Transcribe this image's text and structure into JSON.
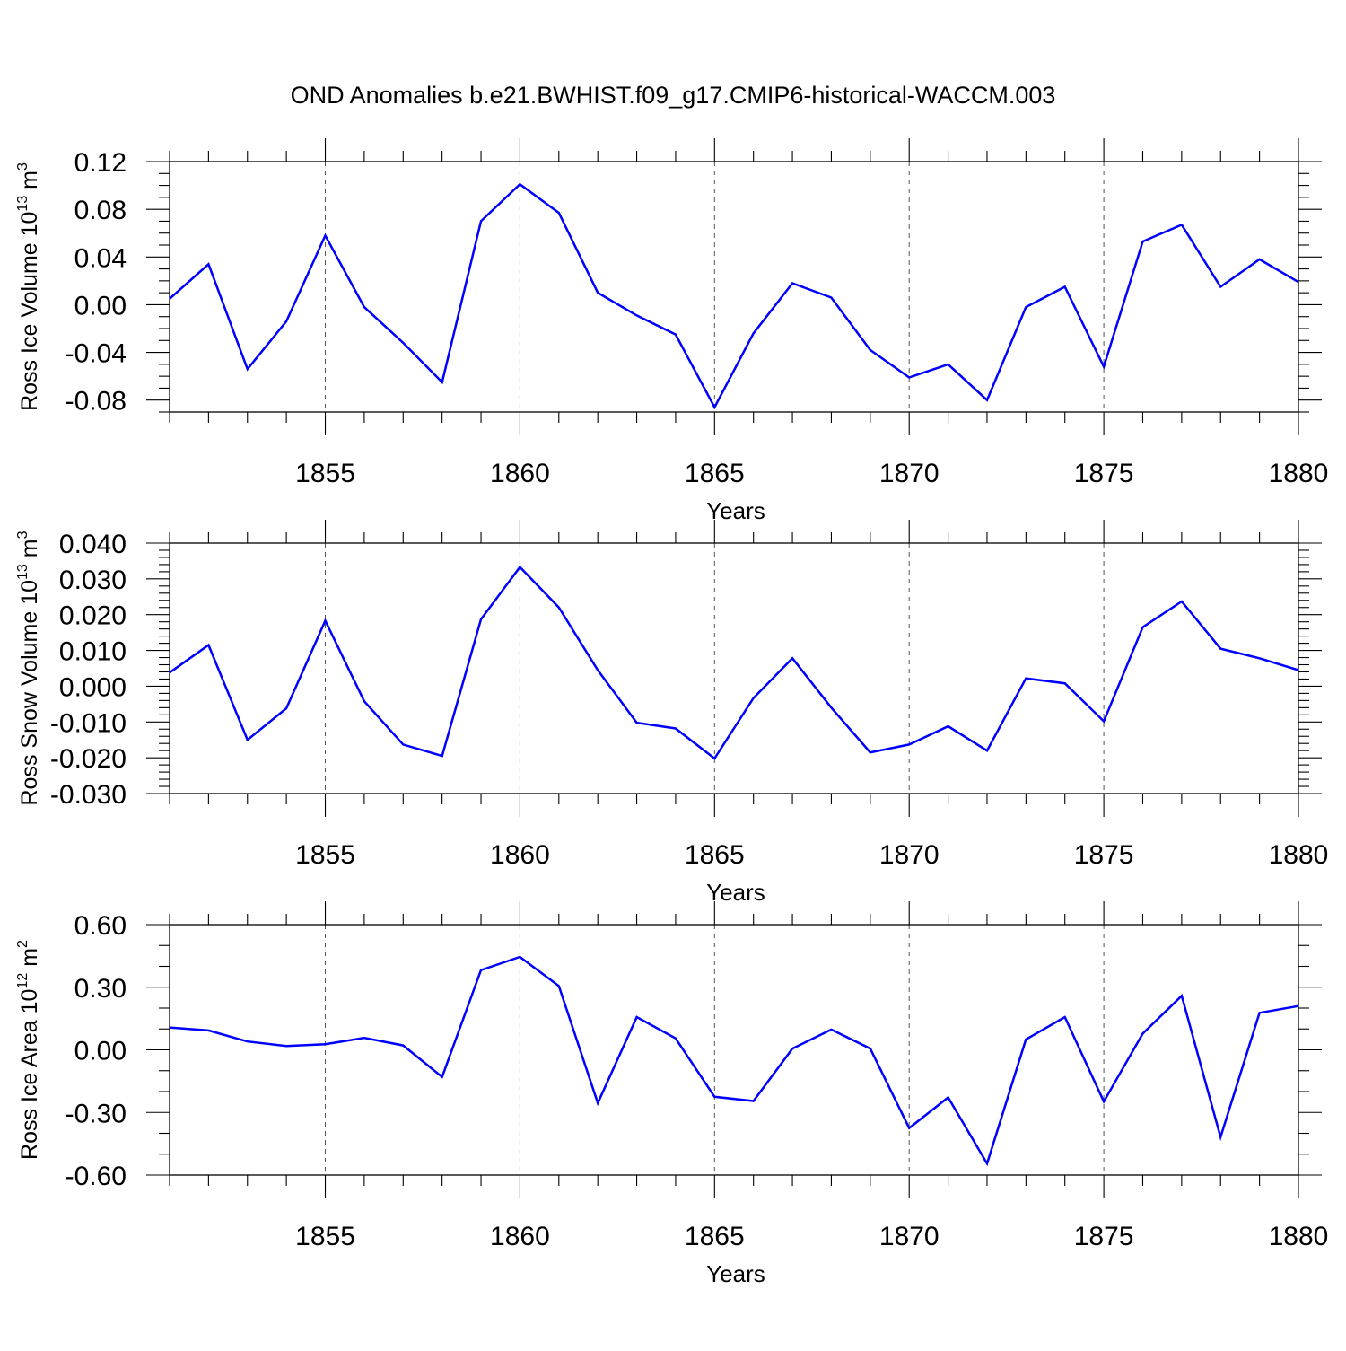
{
  "title": "OND Anomalies b.e21.BWHIST.f09_g17.CMIP6-historical-WACCM.003",
  "chart_data": [
    {
      "type": "line",
      "ylabel": {
        "main": "Ross Ice Volume 10",
        "exp": "13",
        "unit": " m",
        "unit_exp": "3"
      },
      "xlabel": "Years",
      "xlim": [
        1851,
        1880
      ],
      "x_ticks": [
        1855,
        1860,
        1865,
        1870,
        1875,
        1880
      ],
      "ylim": [
        -0.09,
        0.12
      ],
      "y_ticks": [
        -0.08,
        -0.04,
        0.0,
        0.04,
        0.08,
        0.12
      ],
      "y_tick_labels": [
        "-0.08",
        "-0.04",
        "0.00",
        "0.04",
        "0.08",
        "0.12"
      ],
      "y_minor_step": 0.01,
      "x": [
        1851,
        1852,
        1853,
        1854,
        1855,
        1856,
        1857,
        1858,
        1859,
        1860,
        1861,
        1862,
        1863,
        1864,
        1865,
        1866,
        1867,
        1868,
        1869,
        1870,
        1871,
        1872,
        1873,
        1874,
        1875,
        1876,
        1877,
        1878,
        1879,
        1880
      ],
      "values": [
        0.005,
        0.034,
        -0.054,
        -0.014,
        0.058,
        -0.002,
        -0.032,
        -0.065,
        0.07,
        0.101,
        0.077,
        0.01,
        -0.009,
        -0.025,
        -0.086,
        -0.024,
        0.018,
        0.006,
        -0.038,
        -0.061,
        -0.05,
        -0.08,
        -0.002,
        0.015,
        -0.052,
        0.053,
        0.067,
        0.015,
        0.038,
        0.019
      ],
      "color": "#0000ff"
    },
    {
      "type": "line",
      "ylabel": {
        "main": "Ross Snow Volume 10",
        "exp": "13",
        "unit": " m",
        "unit_exp": "3"
      },
      "xlabel": "Years",
      "xlim": [
        1851,
        1880
      ],
      "x_ticks": [
        1855,
        1860,
        1865,
        1870,
        1875,
        1880
      ],
      "ylim": [
        -0.03,
        0.04
      ],
      "y_ticks": [
        -0.03,
        -0.02,
        -0.01,
        0.0,
        0.01,
        0.02,
        0.03,
        0.04
      ],
      "y_tick_labels": [
        "-0.030",
        "-0.020",
        "-0.010",
        "0.000",
        "0.010",
        "0.020",
        "0.030",
        "0.040"
      ],
      "y_minor_step": 0.002,
      "x": [
        1851,
        1852,
        1853,
        1854,
        1855,
        1856,
        1857,
        1858,
        1859,
        1860,
        1861,
        1862,
        1863,
        1864,
        1865,
        1866,
        1867,
        1868,
        1869,
        1870,
        1871,
        1872,
        1873,
        1874,
        1875,
        1876,
        1877,
        1878,
        1879,
        1880
      ],
      "values": [
        0.0038,
        0.0115,
        -0.015,
        -0.0062,
        0.0183,
        -0.0042,
        -0.0163,
        -0.0195,
        0.0187,
        0.0333,
        0.022,
        0.0045,
        -0.0102,
        -0.0118,
        -0.0202,
        -0.0033,
        0.0078,
        -0.006,
        -0.0185,
        -0.0163,
        -0.0112,
        -0.018,
        0.0022,
        0.0008,
        -0.0098,
        0.0165,
        0.0237,
        0.0105,
        0.0078,
        0.0045
      ],
      "color": "#0000ff"
    },
    {
      "type": "line",
      "ylabel": {
        "main": "Ross Ice Area 10",
        "exp": "12",
        "unit": " m",
        "unit_exp": "2"
      },
      "xlabel": "Years",
      "xlim": [
        1851,
        1880
      ],
      "x_ticks": [
        1855,
        1860,
        1865,
        1870,
        1875,
        1880
      ],
      "ylim": [
        -0.6,
        0.6
      ],
      "y_ticks": [
        -0.6,
        -0.3,
        0.0,
        0.3,
        0.6
      ],
      "y_tick_labels": [
        "-0.60",
        "-0.30",
        "0.00",
        "0.30",
        "0.60"
      ],
      "y_minor_step": 0.1,
      "x": [
        1851,
        1852,
        1853,
        1854,
        1855,
        1856,
        1857,
        1858,
        1859,
        1860,
        1861,
        1862,
        1863,
        1864,
        1865,
        1866,
        1867,
        1868,
        1869,
        1870,
        1871,
        1872,
        1873,
        1874,
        1875,
        1876,
        1877,
        1878,
        1879,
        1880
      ],
      "values": [
        0.107,
        0.093,
        0.04,
        0.018,
        0.027,
        0.057,
        0.021,
        -0.13,
        0.382,
        0.445,
        0.306,
        -0.255,
        0.157,
        0.055,
        -0.225,
        -0.245,
        0.006,
        0.097,
        0.006,
        -0.375,
        -0.228,
        -0.545,
        0.05,
        0.157,
        -0.248,
        0.078,
        0.259,
        -0.418,
        0.177,
        0.21
      ],
      "color": "#0000ff"
    }
  ]
}
